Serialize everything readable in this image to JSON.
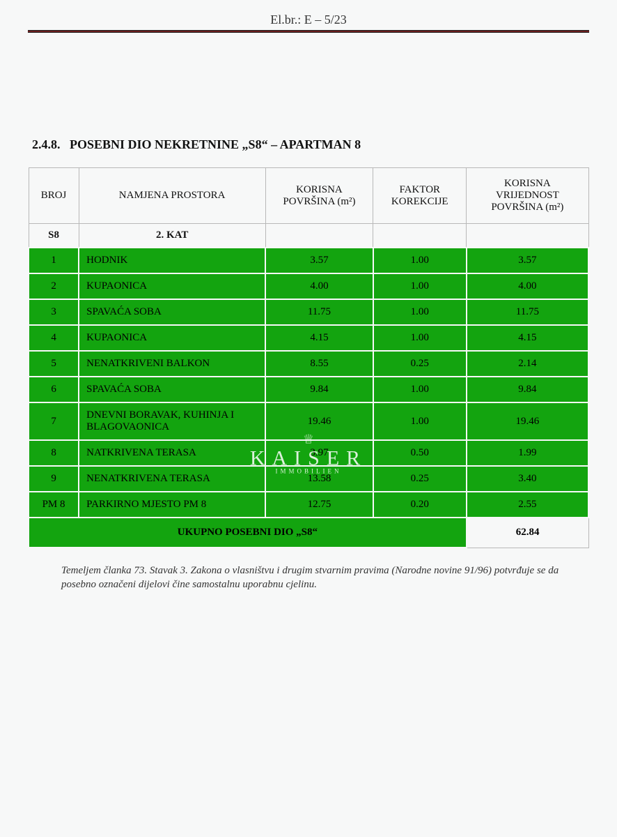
{
  "header": {
    "doc_ref": "El.br.: E – 5/23"
  },
  "section": {
    "number": "2.4.8.",
    "title": "POSEBNI DIO NEKRETNINE „S8“ – APARTMAN 8"
  },
  "table": {
    "columns": {
      "c1": "BROJ",
      "c2": "NAMJENA PROSTORA",
      "c3": "KORISNA POVRŠINA (m²)",
      "c4": "FAKTOR KOREKCIJE",
      "c5": "KORISNA VRIJEDNOST POVRŠINA (m²)"
    },
    "unit": {
      "code": "S8",
      "floor": "2. KAT"
    },
    "rows": [
      {
        "n": "1",
        "name": "HODNIK",
        "area": "3.57",
        "factor": "1.00",
        "val": "3.57"
      },
      {
        "n": "2",
        "name": "KUPAONICA",
        "area": "4.00",
        "factor": "1.00",
        "val": "4.00"
      },
      {
        "n": "3",
        "name": "SPAVAĆA SOBA",
        "area": "11.75",
        "factor": "1.00",
        "val": "11.75"
      },
      {
        "n": "4",
        "name": "KUPAONICA",
        "area": "4.15",
        "factor": "1.00",
        "val": "4.15"
      },
      {
        "n": "5",
        "name": "NENATKRIVENI BALKON",
        "area": "8.55",
        "factor": "0.25",
        "val": "2.14"
      },
      {
        "n": "6",
        "name": "SPAVAĆA SOBA",
        "area": "9.84",
        "factor": "1.00",
        "val": "9.84"
      },
      {
        "n": "7",
        "name": "DNEVNI BORAVAK, KUHINJA I BLAGOVAONICA",
        "area": "19.46",
        "factor": "1.00",
        "val": "19.46"
      },
      {
        "n": "8",
        "name": "NATKRIVENA TERASA",
        "area": "3.97",
        "factor": "0.50",
        "val": "1.99"
      },
      {
        "n": "9",
        "name": "NENATKRIVENA TERASA",
        "area": "13.58",
        "factor": "0.25",
        "val": "3.40"
      },
      {
        "n": "PM 8",
        "name": "PARKIRNO MJESTO PM 8",
        "area": "12.75",
        "factor": "0.20",
        "val": "2.55"
      }
    ],
    "total": {
      "label": "UKUPNO POSEBNI DIO „S8“",
      "value": "62.84"
    },
    "colors": {
      "row_bg": "#13a40f",
      "page_bg": "#f7f8f8",
      "rule": "#6a1f1f",
      "border": "#b8b8b8"
    }
  },
  "footnote": "Temeljem članka 73. Stavak 3. Zakona o vlasništvu i drugim stvarnim pravima (Narodne novine 91/96) potvrđuje se da posebno označeni dijelovi čine samostalnu uporabnu cjelinu.",
  "watermark": {
    "brand": "KAISER",
    "sub": "IMMOBILIEN"
  }
}
